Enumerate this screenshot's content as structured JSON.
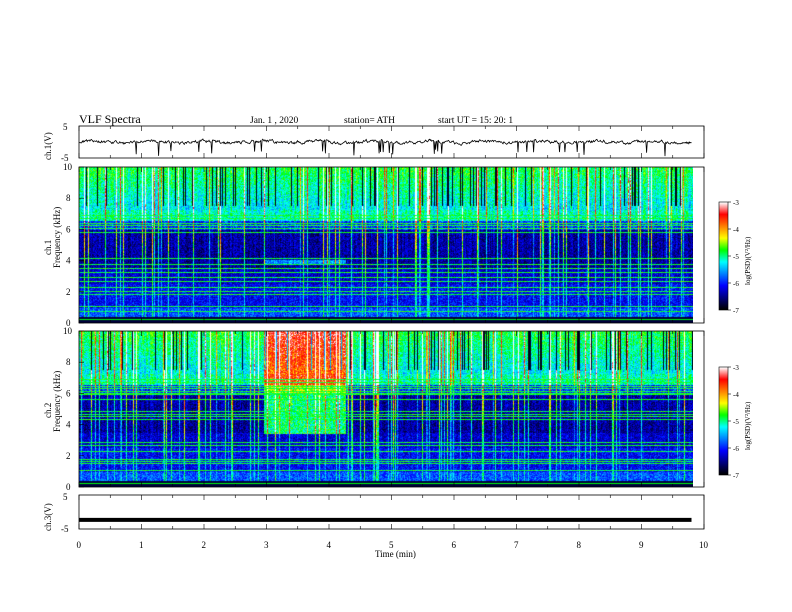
{
  "header": {
    "title": "VLF  Spectra",
    "date": "Jan.  1  , 2020",
    "station": "station= ATH",
    "start": "start  UT  =    15: 20: 1"
  },
  "chart_data": [
    {
      "type": "line",
      "name": "ch1-waveform",
      "ylabel": "ch.1(V)",
      "ylim": [
        -5,
        5
      ],
      "yticks": [
        "5",
        "-5"
      ],
      "xlim": [
        0,
        10
      ],
      "duration_min": 9.8,
      "baseline_v": 0,
      "color": "#000000"
    },
    {
      "type": "heatmap",
      "name": "ch1-spectrogram",
      "channel_label": "ch.1",
      "ylabel": "Frequency  (kHz)",
      "ylim": [
        0,
        10
      ],
      "yticks": [
        "0",
        "2",
        "4",
        "6",
        "8",
        "10"
      ],
      "xlim": [
        0,
        10
      ],
      "duration_min": 9.8,
      "colorbar": {
        "label": "log(PSD)(V²/Hz)",
        "range": [
          -7,
          -3
        ],
        "ticks": [
          "-3",
          "-4",
          "-5",
          "-6",
          "-7"
        ],
        "colormap": [
          "#000000",
          "#00007f",
          "#0000ff",
          "#0080ff",
          "#00ffff",
          "#00ff00",
          "#ffff00",
          "#ff8000",
          "#ff0000",
          "#ffffff"
        ]
      },
      "event": {
        "t_start_min": 2.95,
        "t_end_min": 4.25,
        "f_low_khz": 3.8,
        "f_high_khz": 4.1
      }
    },
    {
      "type": "heatmap",
      "name": "ch2-spectrogram",
      "channel_label": "ch.2",
      "ylabel": "Frequency  (kHz)",
      "ylim": [
        0,
        10
      ],
      "yticks": [
        "0",
        "2",
        "4",
        "6",
        "8",
        "10"
      ],
      "xlim": [
        0,
        10
      ],
      "duration_min": 9.8,
      "colorbar": {
        "label": "log(PSD)(V²/Hz)",
        "range": [
          -7,
          -3
        ],
        "ticks": [
          "-3",
          "-4",
          "-5",
          "-6",
          "-7"
        ],
        "colormap": [
          "#000000",
          "#00007f",
          "#0000ff",
          "#0080ff",
          "#00ffff",
          "#00ff00",
          "#ffff00",
          "#ff8000",
          "#ff0000",
          "#ffffff"
        ]
      },
      "event": {
        "t_start_min": 2.95,
        "t_end_min": 4.25,
        "f_low_khz": 3.4,
        "f_high_khz": 10
      }
    },
    {
      "type": "line",
      "name": "ch3-waveform",
      "ylabel": "ch.3(V)",
      "ylim": [
        -5,
        5
      ],
      "yticks": [
        "5",
        "-5"
      ],
      "xlim": [
        0,
        10
      ],
      "xlabel": "Time  (min)",
      "xticks": [
        "0",
        "1",
        "2",
        "3",
        "4",
        "5",
        "6",
        "7",
        "8",
        "9",
        "10"
      ],
      "duration_min": 9.8,
      "level_v": -2.3,
      "color": "#000000"
    }
  ]
}
